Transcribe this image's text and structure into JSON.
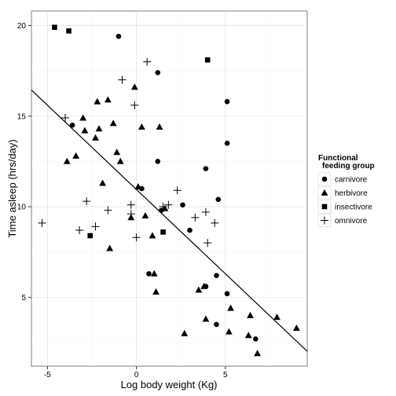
{
  "chart_data": {
    "type": "scatter",
    "title": "",
    "xlabel": "Log body weight (Kg)",
    "ylabel": "Time asleep (hrs/day)",
    "xlim": [
      -5.9,
      9.6
    ],
    "ylim": [
      1.2,
      20.8
    ],
    "x_ticks": [
      -5,
      0,
      5
    ],
    "y_ticks": [
      5,
      10,
      15,
      20
    ],
    "grid": true,
    "legend_position": "right",
    "legend_title": [
      "Functional",
      "feeding group"
    ],
    "series": [
      {
        "name": "carnivore",
        "shape": "circle",
        "points": [
          [
            -1.0,
            19.4
          ],
          [
            1.2,
            17.4
          ],
          [
            5.1,
            15.8
          ],
          [
            -3.6,
            14.5
          ],
          [
            5.1,
            13.5
          ],
          [
            1.2,
            12.5
          ],
          [
            3.9,
            12.1
          ],
          [
            0.3,
            11.0
          ],
          [
            4.6,
            10.4
          ],
          [
            2.6,
            10.1
          ],
          [
            1.4,
            9.8
          ],
          [
            3.0,
            8.7
          ],
          [
            0.7,
            6.3
          ],
          [
            4.5,
            6.2
          ],
          [
            5.1,
            5.2
          ],
          [
            3.9,
            5.6
          ],
          [
            4.5,
            3.5
          ],
          [
            6.7,
            2.7
          ]
        ]
      },
      {
        "name": "herbivore",
        "shape": "triangle",
        "points": [
          [
            -0.1,
            16.6
          ],
          [
            -2.2,
            15.8
          ],
          [
            -1.6,
            15.9
          ],
          [
            -3.0,
            14.9
          ],
          [
            -1.3,
            14.6
          ],
          [
            0.3,
            14.4
          ],
          [
            1.3,
            14.4
          ],
          [
            -2.1,
            14.3
          ],
          [
            -2.9,
            14.2
          ],
          [
            -2.3,
            13.8
          ],
          [
            -1.1,
            13.0
          ],
          [
            -3.4,
            12.8
          ],
          [
            -0.9,
            12.5
          ],
          [
            -3.9,
            12.5
          ],
          [
            -1.9,
            11.3
          ],
          [
            0.1,
            11.1
          ],
          [
            -0.3,
            9.4
          ],
          [
            0.5,
            9.5
          ],
          [
            1.6,
            9.9
          ],
          [
            0.9,
            8.4
          ],
          [
            -1.5,
            7.7
          ],
          [
            1.0,
            6.3
          ],
          [
            1.1,
            5.3
          ],
          [
            3.5,
            5.4
          ],
          [
            3.8,
            5.6
          ],
          [
            5.3,
            4.4
          ],
          [
            6.4,
            4.0
          ],
          [
            7.9,
            3.9
          ],
          [
            9.0,
            3.3
          ],
          [
            3.9,
            3.8
          ],
          [
            5.2,
            3.1
          ],
          [
            6.3,
            2.9
          ],
          [
            6.8,
            1.9
          ],
          [
            2.7,
            3.0
          ]
        ]
      },
      {
        "name": "insectivore",
        "shape": "square",
        "points": [
          [
            -4.6,
            19.9
          ],
          [
            -3.8,
            19.7
          ],
          [
            4.0,
            18.1
          ],
          [
            -2.6,
            8.4
          ],
          [
            1.5,
            8.6
          ]
        ]
      },
      {
        "name": "omnivore",
        "shape": "plus",
        "points": [
          [
            0.6,
            18.0
          ],
          [
            -0.8,
            17.0
          ],
          [
            -0.1,
            15.6
          ],
          [
            -4.0,
            14.9
          ],
          [
            2.3,
            10.9
          ],
          [
            -2.8,
            10.3
          ],
          [
            -0.3,
            10.1
          ],
          [
            1.8,
            10.1
          ],
          [
            -1.6,
            9.8
          ],
          [
            -0.3,
            9.6
          ],
          [
            3.9,
            9.7
          ],
          [
            3.3,
            9.4
          ],
          [
            1.5,
            10.0
          ],
          [
            4.4,
            9.1
          ],
          [
            -2.3,
            8.9
          ],
          [
            -3.2,
            8.7
          ],
          [
            0.0,
            8.3
          ],
          [
            4.0,
            8.0
          ],
          [
            -5.3,
            9.1
          ]
        ]
      }
    ],
    "regression_line": {
      "intercept": 10.95,
      "slope": -0.93
    }
  }
}
